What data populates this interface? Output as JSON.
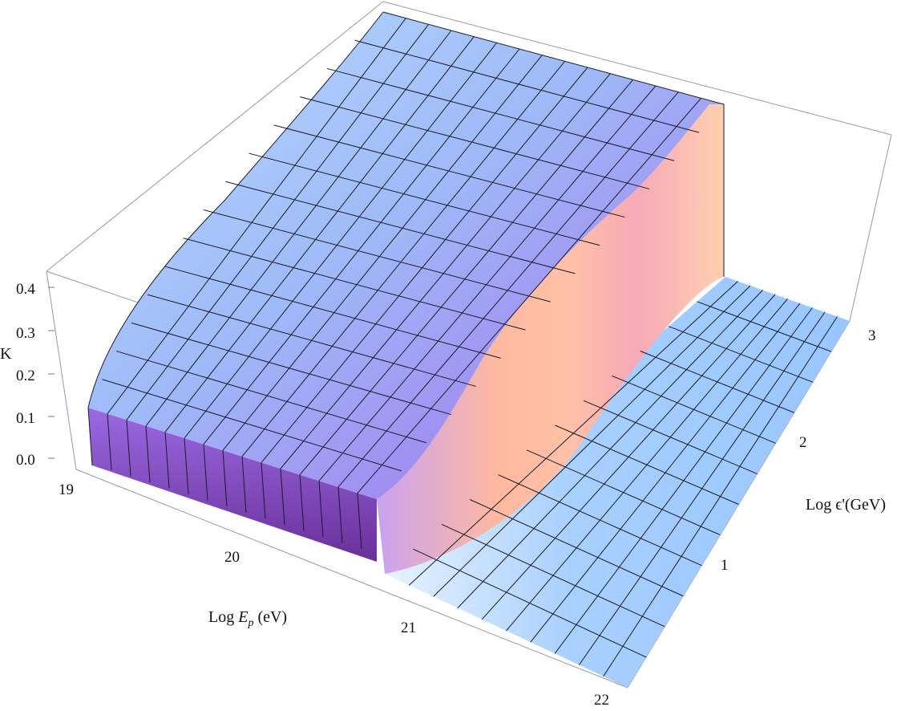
{
  "chart_data": {
    "type": "surface3d",
    "z_axis": {
      "label": "K",
      "ticks": [
        "0.0",
        "0.1",
        "0.2",
        "0.3",
        "0.4"
      ],
      "range": [
        0,
        0.43
      ]
    },
    "x_axis": {
      "label_parts": [
        "Log ",
        "E",
        "p",
        " (eV)"
      ],
      "ticks": [
        "19",
        "20",
        "21",
        "22"
      ],
      "range": [
        19,
        22
      ]
    },
    "y_axis": {
      "label": "Log ϵ'(GeV)",
      "ticks": [
        "1",
        "2",
        "3"
      ],
      "range": [
        0,
        3.2
      ]
    },
    "surface": {
      "description_of_shape": "K plateau near 0.4 at high ϵ', dropping sharply to ~0 beyond a threshold Log E_p that decreases as Log ϵ' increases",
      "plateau_value": 0.4,
      "threshold_points": [
        {
          "log_eps": 0.0,
          "log_Ep": 20.7
        },
        {
          "log_eps": 1.0,
          "log_Ep": 20.9
        },
        {
          "log_eps": 2.0,
          "log_Ep": 21.3
        },
        {
          "log_eps": 3.0,
          "log_Ep": 21.9
        }
      ]
    },
    "colors": {
      "low": "#7b3fb0",
      "mid": "#a88cf0",
      "high_flat": "#9cc7ff",
      "edge": "#ffb89a",
      "edge_pink": "#f37bb0"
    }
  }
}
